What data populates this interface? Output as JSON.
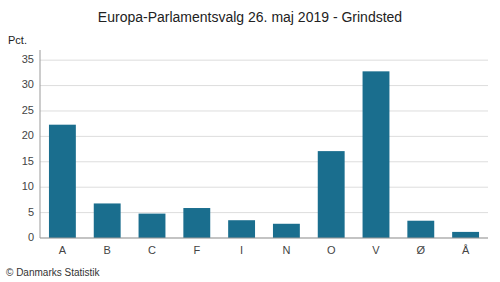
{
  "chart_data": {
    "type": "bar",
    "title": "Europa-Parlamentsvalg 26. maj 2019 - Grindsted",
    "y_label": "Pct.",
    "annotations": [
      "© Danmarks Statistik"
    ],
    "categories": [
      "A",
      "B",
      "C",
      "F",
      "I",
      "N",
      "O",
      "V",
      "Ø",
      "Å"
    ],
    "values": [
      22.3,
      6.8,
      4.8,
      5.9,
      3.5,
      2.8,
      17.1,
      32.8,
      3.4,
      1.2
    ],
    "color": "#1a6e8e",
    "ylim": [
      0,
      37
    ],
    "yticks": [
      0,
      5,
      10,
      15,
      20,
      25,
      30,
      35
    ],
    "grid": true
  }
}
